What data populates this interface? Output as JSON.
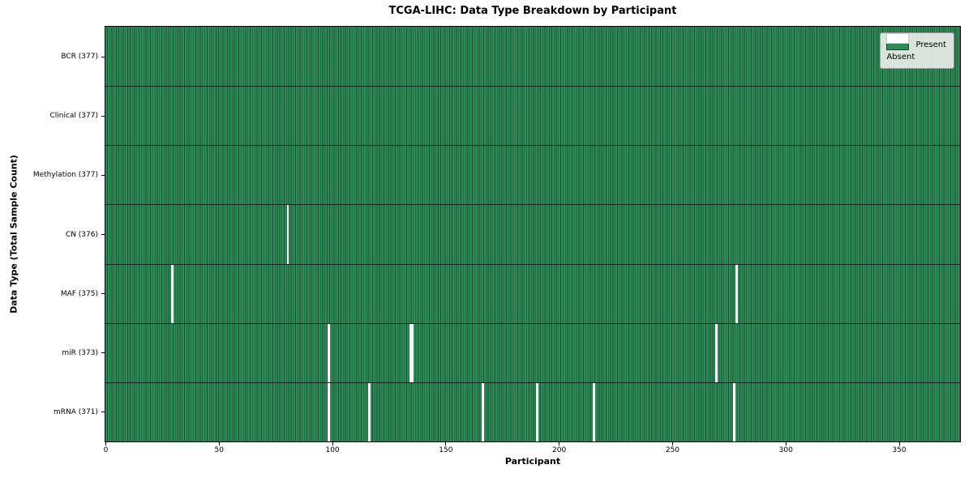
{
  "title": "TCGA-LIHC: Data Type Breakdown by Participant",
  "x_axis_label": "Participant",
  "y_axis_label": "Data Type (Total Sample Count)",
  "legend": {
    "present_label": "Present",
    "absent_label": "Absent"
  },
  "colors": {
    "present": "#2e8b57",
    "absent": "#ffffff",
    "cell_edge": "#1a5132",
    "row_divider": "#081a10",
    "legend_background": "#e9ede9",
    "spine": "#000000"
  },
  "chart_data": {
    "type": "heatmap",
    "title": "TCGA-LIHC: Data Type Breakdown by Participant",
    "xlabel": "Participant",
    "ylabel": "Data Type (Total Sample Count)",
    "xlim": [
      0,
      377
    ],
    "x_ticks": [
      0,
      50,
      100,
      150,
      200,
      250,
      300,
      350
    ],
    "n_participants": 377,
    "grid": false,
    "legend_position": "upper right",
    "legend_entries": [
      {
        "label": "Present",
        "color": "#2e8b57"
      },
      {
        "label": "Absent",
        "color": "#ffffff"
      }
    ],
    "rows": [
      {
        "name": "BCR",
        "label": "BCR (377)",
        "total": 377,
        "absent_participants": []
      },
      {
        "name": "Clinical",
        "label": "Clinical (377)",
        "total": 377,
        "absent_participants": []
      },
      {
        "name": "Methylation",
        "label": "Methylation (377)",
        "total": 377,
        "absent_participants": []
      },
      {
        "name": "CN",
        "label": "CN (376)",
        "total": 376,
        "absent_participants": [
          80
        ]
      },
      {
        "name": "MAF",
        "label": "MAF (375)",
        "total": 375,
        "absent_participants": [
          29,
          278
        ]
      },
      {
        "name": "miR",
        "label": "miR (373)",
        "total": 373,
        "absent_participants": [
          98,
          134,
          135,
          269
        ]
      },
      {
        "name": "mRNA",
        "label": "mRNA (371)",
        "total": 371,
        "absent_participants": [
          98,
          116,
          166,
          190,
          215,
          277
        ]
      }
    ]
  }
}
